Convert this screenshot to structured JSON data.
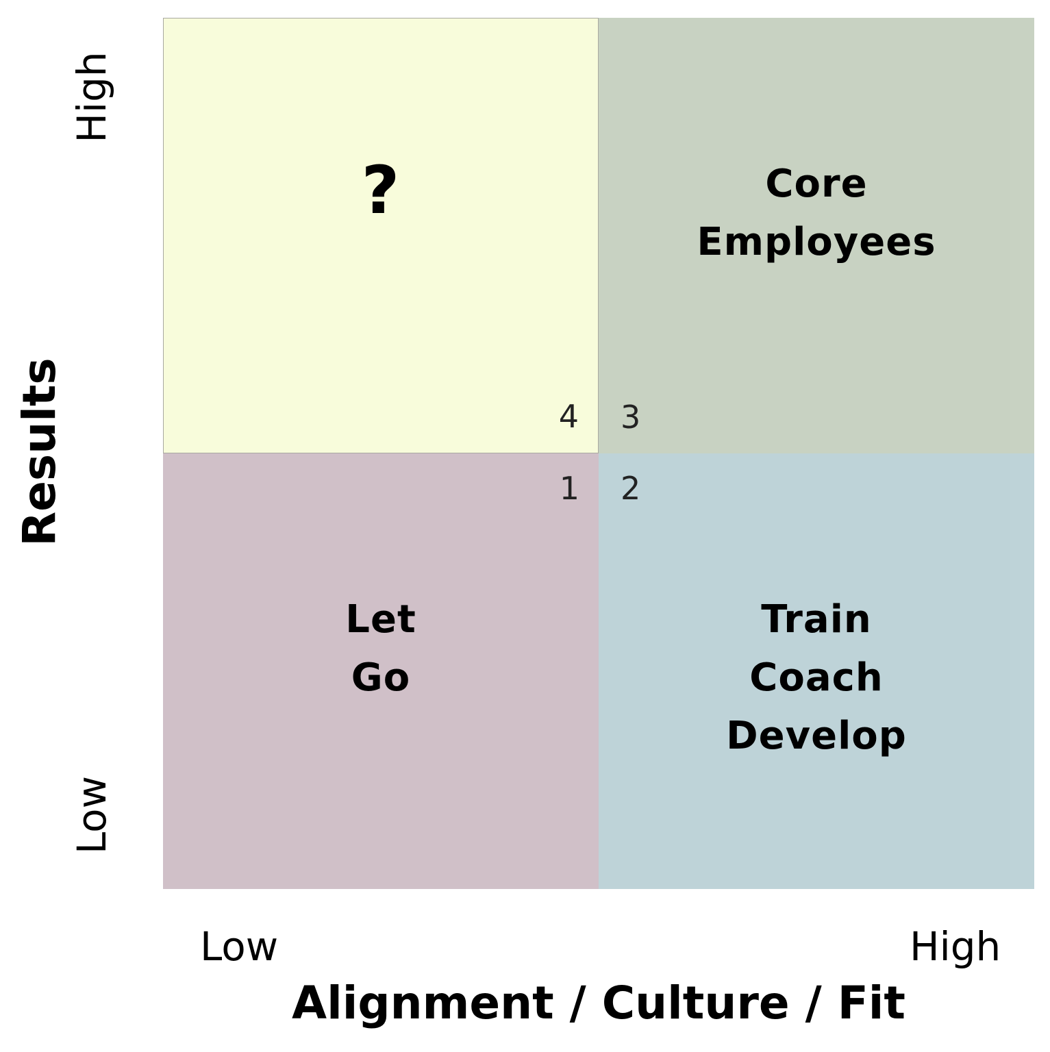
{
  "diagram": {
    "x_axis": {
      "title": "Alignment / Culture / Fit",
      "low_label": "Low",
      "high_label": "High"
    },
    "y_axis": {
      "title": "Results",
      "low_label": "Low",
      "high_label": "High"
    },
    "quadrants": {
      "top_left": {
        "number": "4",
        "lines": [
          "?"
        ],
        "color": "#f8fcdb"
      },
      "top_right": {
        "number": "3",
        "lines": [
          "Core",
          "Employees"
        ],
        "color": "#c8d2c2"
      },
      "bottom_left": {
        "number": "1",
        "lines": [
          "Let",
          "Go"
        ],
        "color": "#d0c0c8"
      },
      "bottom_right": {
        "number": "2",
        "lines": [
          "Train",
          "Coach",
          "Develop"
        ],
        "color": "#bed3d8"
      }
    }
  }
}
